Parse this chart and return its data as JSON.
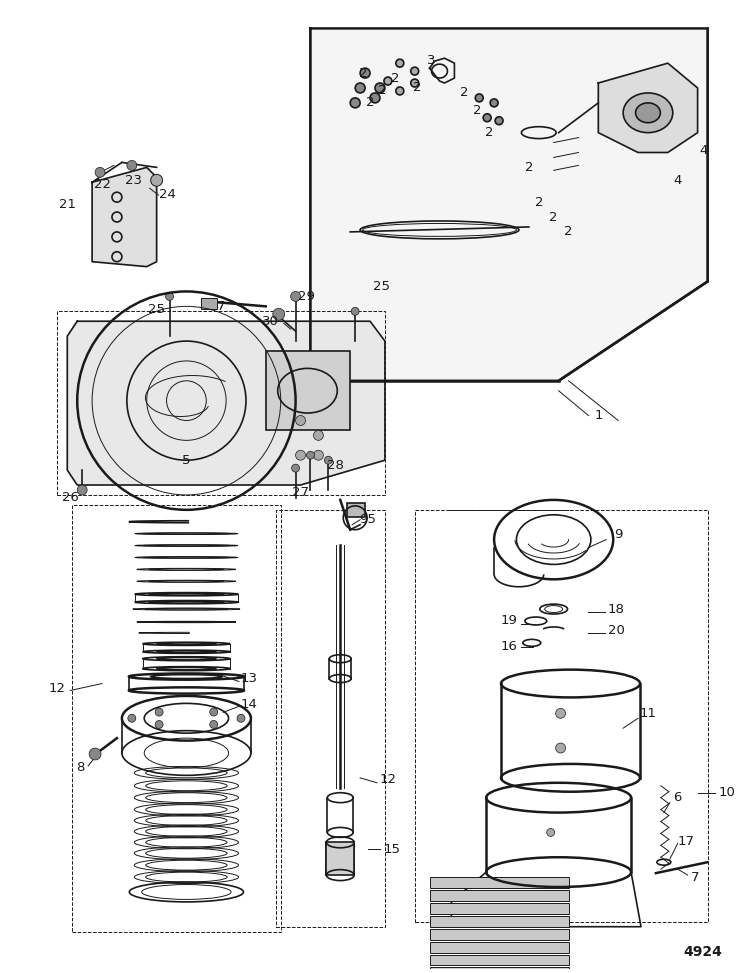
{
  "bg_color": "#ffffff",
  "line_color": "#1a1a1a",
  "fig_width": 7.5,
  "fig_height": 9.73,
  "dpi": 100,
  "watermark": "4924",
  "lw_main": 1.2,
  "lw_thin": 0.7,
  "lw_thick": 1.8
}
